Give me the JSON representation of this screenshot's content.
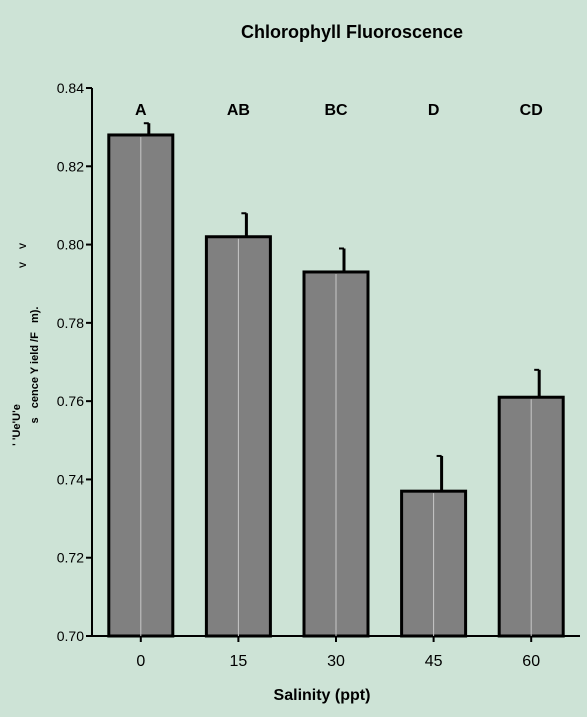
{
  "chart_data": {
    "type": "bar",
    "title": "Chlorophyll Fluoroscence",
    "xlabel": "Salinity (ppt)",
    "ylabel_fragments": [
      "' 'Ue'U'e",
      "s   cence Y ield /F   m).",
      "V",
      "V"
    ],
    "categories": [
      "0",
      "15",
      "30",
      "45",
      "60"
    ],
    "values": [
      0.828,
      0.802,
      0.793,
      0.737,
      0.761
    ],
    "error_upper": [
      0.831,
      0.808,
      0.799,
      0.746,
      0.768
    ],
    "group_letters": [
      "A",
      "AB",
      "BC",
      "D",
      "CD"
    ],
    "ylim": [
      0.7,
      0.84
    ],
    "yticks": [
      0.7,
      0.72,
      0.74,
      0.76,
      0.78,
      0.8,
      0.82,
      0.84
    ],
    "ytick_labels": [
      "0.70",
      "0.72",
      "0.74",
      "0.76",
      "0.78",
      "0.80",
      "0.82",
      "0.84"
    ],
    "grid": false,
    "legend": "none"
  },
  "colors": {
    "background": "#cde3d6",
    "bar_fill": "#808080",
    "bar_stroke": "#000000",
    "axis": "#000000",
    "text": "#000000"
  }
}
